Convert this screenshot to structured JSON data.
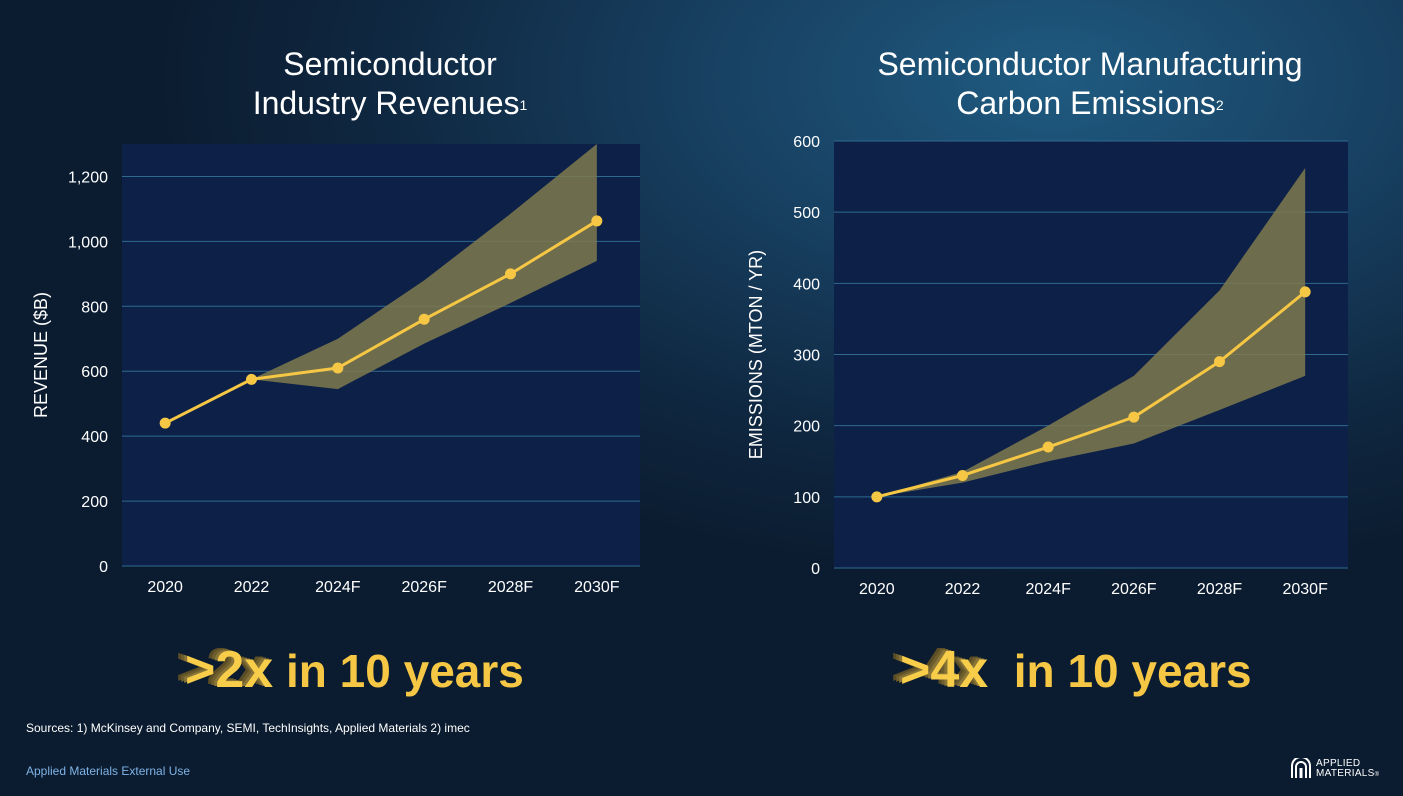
{
  "chart_data": [
    {
      "type": "line",
      "title": "Semiconductor Industry Revenues",
      "title_line1": "Semiconductor",
      "title_line2": "Industry Revenues",
      "title_footnote": "1",
      "xlabel": "",
      "ylabel": "REVENUE ($B)",
      "categories": [
        "2020",
        "2022",
        "2024F",
        "2026F",
        "2028F",
        "2030F"
      ],
      "ylim": [
        0,
        1300
      ],
      "yticks": [
        0,
        200,
        400,
        600,
        800,
        1000,
        1200
      ],
      "ytick_labels": [
        "0",
        "200",
        "400",
        "600",
        "800",
        "1,000",
        "1,200"
      ],
      "grid": true,
      "series": [
        {
          "name": "Revenue",
          "values": [
            440,
            575,
            610,
            760,
            900,
            1063
          ]
        }
      ],
      "range_band": {
        "upper": [
          null,
          575,
          700,
          880,
          1085,
          1300
        ],
        "lower": [
          null,
          575,
          545,
          685,
          810,
          940
        ]
      }
    },
    {
      "type": "line",
      "title": "Semiconductor Manufacturing Carbon Emissions",
      "title_line1": "Semiconductor Manufacturing",
      "title_line2": "Carbon Emissions",
      "title_footnote": "2",
      "xlabel": "",
      "ylabel": "EMISSIONS (MTON / YR)",
      "categories": [
        "2020",
        "2022",
        "2024F",
        "2026F",
        "2028F",
        "2030F"
      ],
      "ylim": [
        0,
        600
      ],
      "yticks": [
        0,
        100,
        200,
        300,
        400,
        500,
        600
      ],
      "ytick_labels": [
        "0",
        "100",
        "200",
        "300",
        "400",
        "500",
        "600"
      ],
      "grid": true,
      "series": [
        {
          "name": "Emissions",
          "values": [
            100,
            130,
            170,
            212,
            290,
            388
          ]
        }
      ],
      "range_band": {
        "upper": [
          100,
          135,
          200,
          270,
          390,
          562
        ],
        "lower": [
          100,
          120,
          150,
          175,
          222,
          270
        ]
      }
    }
  ],
  "headlines": [
    {
      "big": ">2x",
      "rest": " in 10 years"
    },
    {
      "big": ">4x",
      "rest": "  in 10 years"
    }
  ],
  "footer": {
    "sources": "Sources: 1) McKinsey and Company, SEMI, TechInsights, Applied Materials  2) imec",
    "usage": "Applied Materials External Use",
    "logo_line1": "APPLIED",
    "logo_line2": "MATERIALS",
    "logo_mark": "®"
  },
  "colors": {
    "plot_bg": "#0d2048",
    "grid": "#2e6a8e",
    "line": "#f6c744",
    "band": "#7f7a4e",
    "text": "#ffffff"
  }
}
